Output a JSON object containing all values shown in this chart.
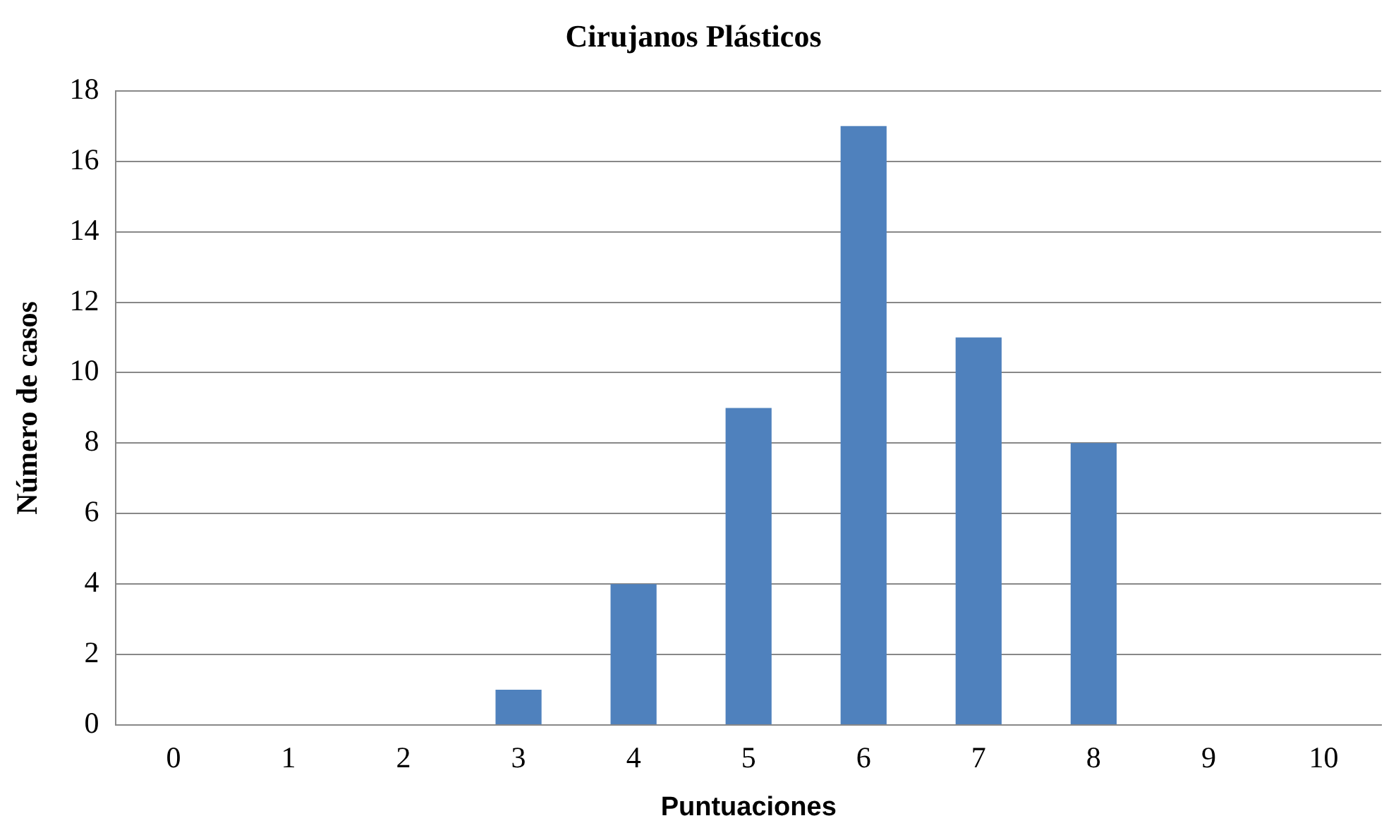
{
  "chart_data": {
    "type": "bar",
    "title": "Cirujanos Plásticos",
    "xlabel": "Puntuaciones",
    "ylabel": "Número de casos",
    "categories": [
      "0",
      "1",
      "2",
      "3",
      "4",
      "5",
      "6",
      "7",
      "8",
      "9",
      "10"
    ],
    "values": [
      0,
      0,
      0,
      1,
      4,
      9,
      17,
      11,
      8,
      0,
      0
    ],
    "color": "#4f81bd",
    "ylim": [
      0,
      18
    ],
    "yticks": [
      0,
      2,
      4,
      6,
      8,
      10,
      12,
      14,
      16,
      18
    ],
    "grid": "y",
    "legend": false
  }
}
